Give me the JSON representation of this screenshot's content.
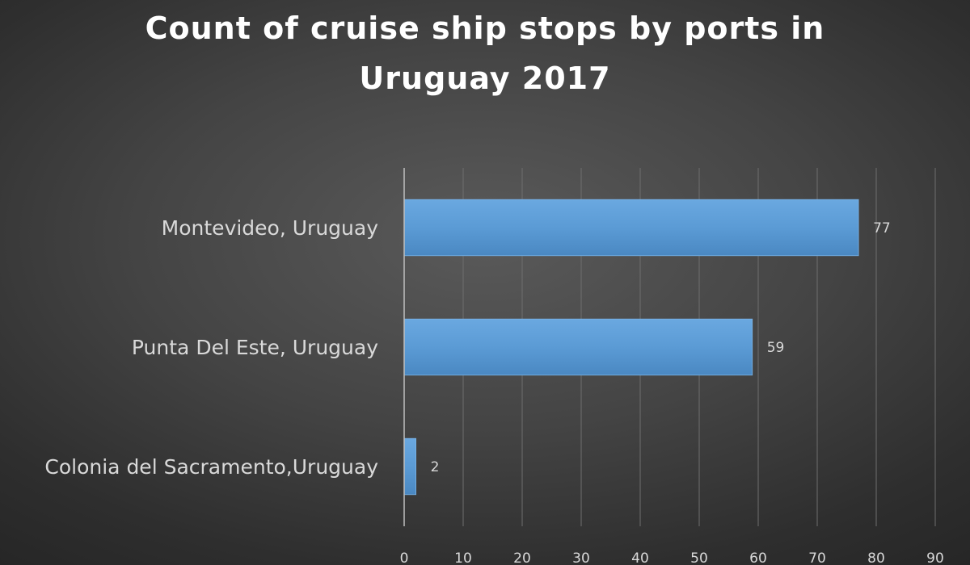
{
  "chart_data": {
    "type": "bar",
    "orientation": "horizontal",
    "title": "Count of cruise ship stops by ports in Uruguay 2017",
    "categories": [
      "Montevideo, Uruguay",
      "Punta Del Este, Uruguay",
      "Colonia del Sacramento,Uruguay"
    ],
    "values": [
      77,
      59,
      2
    ],
    "xlim": [
      0,
      90
    ],
    "xticks": [
      0,
      10,
      20,
      30,
      40,
      50,
      60,
      70,
      80,
      90
    ],
    "xlabel": "",
    "ylabel": "",
    "grid": true,
    "data_labels": true,
    "bar_color": "#5b9bd5",
    "background_color": "#404040"
  }
}
